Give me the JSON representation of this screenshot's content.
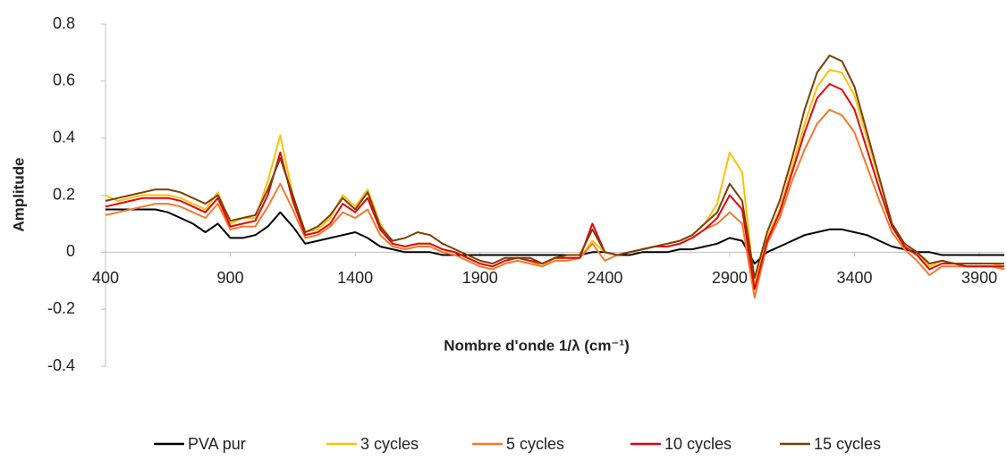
{
  "chart_data": {
    "type": "line",
    "xlabel": "Nombre d'onde 1/λ (cm⁻¹)",
    "ylabel": "Amplitude",
    "x": [
      400,
      450,
      500,
      550,
      600,
      650,
      700,
      750,
      800,
      850,
      900,
      950,
      1000,
      1050,
      1100,
      1150,
      1200,
      1250,
      1300,
      1350,
      1400,
      1450,
      1500,
      1550,
      1600,
      1650,
      1700,
      1750,
      1800,
      1850,
      1900,
      1950,
      2000,
      2050,
      2100,
      2150,
      2200,
      2250,
      2300,
      2350,
      2400,
      2450,
      2500,
      2550,
      2600,
      2650,
      2700,
      2750,
      2800,
      2850,
      2900,
      2950,
      3000,
      3050,
      3100,
      3150,
      3200,
      3250,
      3300,
      3350,
      3400,
      3450,
      3500,
      3550,
      3600,
      3650,
      3700,
      3750,
      3800,
      3850,
      3900,
      3950,
      4000
    ],
    "series": [
      {
        "name": "PVA pur",
        "color": "#000000",
        "values": [
          0.15,
          0.15,
          0.15,
          0.15,
          0.15,
          0.14,
          0.12,
          0.1,
          0.07,
          0.1,
          0.05,
          0.05,
          0.06,
          0.09,
          0.14,
          0.09,
          0.03,
          0.04,
          0.05,
          0.06,
          0.07,
          0.05,
          0.02,
          0.01,
          0.0,
          0.0,
          0.0,
          -0.01,
          -0.01,
          -0.01,
          -0.01,
          -0.01,
          -0.01,
          -0.01,
          -0.01,
          -0.01,
          -0.01,
          -0.01,
          -0.01,
          0.0,
          0.0,
          -0.01,
          -0.01,
          0.0,
          0.0,
          0.0,
          0.01,
          0.01,
          0.02,
          0.03,
          0.05,
          0.04,
          -0.04,
          0.0,
          0.02,
          0.04,
          0.06,
          0.07,
          0.08,
          0.08,
          0.07,
          0.06,
          0.04,
          0.02,
          0.01,
          0.0,
          0.0,
          -0.01,
          -0.01,
          -0.01,
          -0.01,
          -0.01,
          -0.01
        ]
      },
      {
        "name": "3 cycles",
        "color": "#ffc000",
        "values": [
          0.2,
          0.18,
          0.19,
          0.2,
          0.2,
          0.2,
          0.19,
          0.17,
          0.15,
          0.21,
          0.1,
          0.12,
          0.12,
          0.25,
          0.41,
          0.2,
          0.07,
          0.08,
          0.12,
          0.2,
          0.16,
          0.22,
          0.1,
          0.03,
          0.02,
          0.03,
          0.03,
          0.01,
          0.0,
          -0.02,
          -0.04,
          -0.05,
          -0.03,
          -0.02,
          -0.03,
          -0.05,
          -0.02,
          -0.02,
          -0.02,
          0.04,
          0.0,
          -0.01,
          0.0,
          0.01,
          0.02,
          0.03,
          0.04,
          0.06,
          0.1,
          0.17,
          0.35,
          0.28,
          -0.12,
          0.05,
          0.15,
          0.3,
          0.45,
          0.58,
          0.64,
          0.63,
          0.55,
          0.4,
          0.25,
          0.1,
          0.03,
          0.0,
          -0.05,
          -0.03,
          -0.04,
          -0.04,
          -0.04,
          -0.04,
          -0.05
        ]
      },
      {
        "name": "5 cycles",
        "color": "#f4792a",
        "values": [
          0.13,
          0.14,
          0.15,
          0.16,
          0.17,
          0.17,
          0.16,
          0.14,
          0.12,
          0.17,
          0.08,
          0.09,
          0.09,
          0.16,
          0.24,
          0.15,
          0.05,
          0.06,
          0.09,
          0.14,
          0.12,
          0.15,
          0.06,
          0.02,
          0.01,
          0.02,
          0.02,
          0.0,
          -0.01,
          -0.03,
          -0.05,
          -0.06,
          -0.04,
          -0.03,
          -0.04,
          -0.05,
          -0.03,
          -0.03,
          -0.02,
          0.03,
          -0.03,
          -0.01,
          0.0,
          0.01,
          0.02,
          0.02,
          0.03,
          0.05,
          0.08,
          0.1,
          0.14,
          0.1,
          -0.16,
          0.03,
          0.12,
          0.25,
          0.36,
          0.45,
          0.5,
          0.48,
          0.42,
          0.3,
          0.18,
          0.07,
          0.01,
          -0.03,
          -0.08,
          -0.05,
          -0.05,
          -0.05,
          -0.05,
          -0.05,
          -0.06
        ]
      },
      {
        "name": "10 cycles",
        "color": "#e8000b",
        "values": [
          0.16,
          0.17,
          0.18,
          0.19,
          0.19,
          0.19,
          0.18,
          0.16,
          0.14,
          0.19,
          0.09,
          0.1,
          0.11,
          0.2,
          0.35,
          0.18,
          0.06,
          0.07,
          0.1,
          0.17,
          0.14,
          0.19,
          0.08,
          0.03,
          0.02,
          0.03,
          0.03,
          0.01,
          0.0,
          -0.02,
          -0.04,
          -0.05,
          -0.03,
          -0.02,
          -0.03,
          -0.04,
          -0.02,
          -0.02,
          -0.02,
          0.1,
          0.0,
          -0.01,
          0.0,
          0.01,
          0.02,
          0.02,
          0.03,
          0.05,
          0.08,
          0.12,
          0.2,
          0.15,
          -0.13,
          0.04,
          0.14,
          0.28,
          0.42,
          0.54,
          0.59,
          0.57,
          0.5,
          0.36,
          0.22,
          0.09,
          0.02,
          -0.01,
          -0.06,
          -0.04,
          -0.04,
          -0.05,
          -0.05,
          -0.05,
          -0.05
        ]
      },
      {
        "name": "15 cycles",
        "color": "#7b3f00",
        "values": [
          0.18,
          0.19,
          0.2,
          0.21,
          0.22,
          0.22,
          0.21,
          0.19,
          0.17,
          0.2,
          0.11,
          0.12,
          0.13,
          0.22,
          0.33,
          0.2,
          0.07,
          0.09,
          0.13,
          0.19,
          0.15,
          0.21,
          0.09,
          0.04,
          0.05,
          0.07,
          0.06,
          0.03,
          0.01,
          -0.01,
          -0.03,
          -0.04,
          -0.02,
          -0.02,
          -0.02,
          -0.04,
          -0.02,
          -0.01,
          -0.01,
          0.08,
          0.0,
          -0.01,
          0.0,
          0.01,
          0.02,
          0.03,
          0.04,
          0.06,
          0.1,
          0.14,
          0.24,
          0.18,
          -0.09,
          0.07,
          0.18,
          0.33,
          0.5,
          0.63,
          0.69,
          0.67,
          0.58,
          0.42,
          0.26,
          0.1,
          0.03,
          0.0,
          -0.04,
          -0.03,
          -0.04,
          -0.04,
          -0.04,
          -0.04,
          -0.04
        ]
      }
    ],
    "xlim": [
      400,
      4000
    ],
    "xticks": [
      400,
      900,
      1400,
      1900,
      2400,
      2900,
      3400,
      3900
    ],
    "ylim": [
      -0.4,
      0.8
    ],
    "yticks": [
      -0.4,
      -0.2,
      0,
      0.2,
      0.4,
      0.6,
      0.8
    ],
    "grid": false,
    "legend": "bottom"
  }
}
